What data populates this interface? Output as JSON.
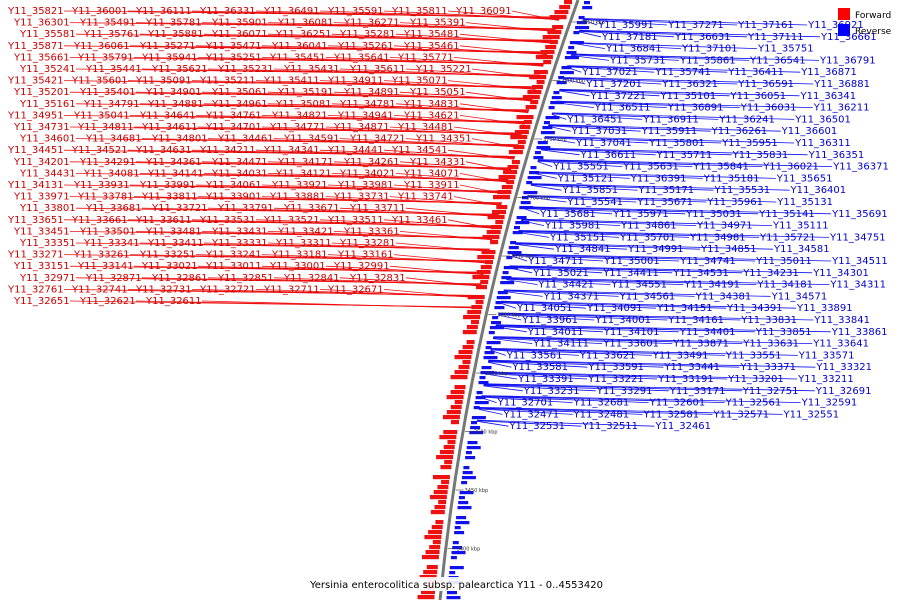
{
  "legend": {
    "forward_label": "Forward",
    "reverse_label": "Reverse",
    "forward_color": "#ff0000",
    "reverse_color": "#0000ff"
  },
  "caption": "Yersinia enterocolitica subsp. palearctica Y11 - 0..4553420",
  "position_labels": [
    "3850 kbp",
    "3800 kbp",
    "3750 kbp",
    "3700 kbp",
    "3650 kbp",
    "3600 kbp",
    "3550 kbp",
    "3500 kbp",
    "3450 kbp",
    "3400 kbp"
  ],
  "forward_genes": [
    "Y11_35821",
    "Y11_36001",
    "Y11_36111",
    "Y11_36331",
    "Y11_36491",
    "Y11_35591",
    "Y11_35811",
    "Y11_36091",
    "Y11_36301",
    "Y11_35491",
    "Y11_35781",
    "Y11_35901",
    "Y11_36081",
    "Y11_36271",
    "Y11_35391",
    "Y11_35581",
    "Y11_35761",
    "Y11_35881",
    "Y11_36071",
    "Y11_36251",
    "Y11_35281",
    "Y11_35481",
    "Y11_35871",
    "Y11_36061",
    "Y11_35271",
    "Y11_35471",
    "Y11_36041",
    "Y11_35261",
    "Y11_35461",
    "Y11_35661",
    "Y11_35791",
    "Y11_35941",
    "Y11_35251",
    "Y11_35451",
    "Y11_35641",
    "Y11_35771",
    "Y11_35241",
    "Y11_35441",
    "Y11_35621",
    "Y11_35231",
    "Y11_35431",
    "Y11_35611",
    "Y11_35221",
    "Y11_35421",
    "Y11_35601",
    "Y11_35091",
    "Y11_35211",
    "Y11_35411",
    "Y11_34911",
    "Y11_35071",
    "Y11_35201",
    "Y11_35401",
    "Y11_34901",
    "Y11_35061",
    "Y11_35191",
    "Y11_34891",
    "Y11_35051",
    "Y11_35161",
    "Y11_34791",
    "Y11_34881",
    "Y11_34961",
    "Y11_35081",
    "Y11_34781",
    "Y11_34831",
    "Y11_34951",
    "Y11_35041",
    "Y11_34641",
    "Y11_34761",
    "Y11_34821",
    "Y11_34941",
    "Y11_34621",
    "Y11_34731",
    "Y11_34811",
    "Y11_34611",
    "Y11_34701",
    "Y11_34771",
    "Y11_34871",
    "Y11_34481",
    "Y11_34601",
    "Y11_34681",
    "Y11_34801",
    "Y11_34461",
    "Y11_34591",
    "Y11_34721",
    "Y11_34351",
    "Y11_34451",
    "Y11_34521",
    "Y11_34631",
    "Y11_34211",
    "Y11_34341",
    "Y11_34441",
    "Y11_34541",
    "Y11_34201",
    "Y11_34291",
    "Y11_34361",
    "Y11_34471",
    "Y11_34171",
    "Y11_34261",
    "Y11_34331",
    "Y11_34431",
    "Y11_34081",
    "Y11_34141",
    "Y11_34031",
    "Y11_34121",
    "Y11_34021",
    "Y11_34071",
    "Y11_34131",
    "Y11_33931",
    "Y11_33991",
    "Y11_34061",
    "Y11_33921",
    "Y11_33981",
    "Y11_33911",
    "Y11_33971",
    "Y11_33781",
    "Y11_33811",
    "Y11_33901",
    "Y11_33881",
    "Y11_33731",
    "Y11_33741",
    "Y11_33801",
    "Y11_33681",
    "Y11_33721",
    "Y11_33791",
    "Y11_33671",
    "Y11_33711",
    "Y11_33651",
    "Y11_33661",
    "Y11_33611",
    "Y11_33531",
    "Y11_33521",
    "Y11_33511",
    "Y11_33461",
    "Y11_33451",
    "Y11_33501",
    "Y11_33481",
    "Y11_33431",
    "Y11_33421",
    "Y11_33361",
    "Y11_33351",
    "Y11_33341",
    "Y11_33411",
    "Y11_33331",
    "Y11_33311",
    "Y11_33281",
    "Y11_33271",
    "Y11_33261",
    "Y11_33251",
    "Y11_33241",
    "Y11_33181",
    "Y11_33161",
    "Y11_33151",
    "Y11_33141",
    "Y11_33021",
    "Y11_33011",
    "Y11_33001",
    "Y11_32991",
    "Y11_32971",
    "Y11_32871",
    "Y11_32861",
    "Y11_32851",
    "Y11_32841",
    "Y11_32831",
    "Y11_32761",
    "Y11_32741",
    "Y11_32731",
    "Y11_32721",
    "Y11_32711",
    "Y11_32671",
    "Y11_32651",
    "Y11_32621",
    "Y11_32611"
  ],
  "reverse_genes": [
    "Y11_35991",
    "Y11_37271",
    "Y11_37161",
    "Y11_36921",
    "Y11_37181",
    "Y11_36631",
    "Y11_37111",
    "Y11_36661",
    "Y11_36841",
    "Y11_37101",
    "Y11_35751",
    "Y11_35731",
    "Y11_35861",
    "Y11_36541",
    "Y11_36791",
    "Y11_37021",
    "Y11_35741",
    "Y11_36411",
    "Y11_36871",
    "Y11_37201",
    "Y11_36321",
    "Y11_36591",
    "Y11_36881",
    "Y11_37221",
    "Y11_35101",
    "Y11_36051",
    "Y11_36341",
    "Y11_36511",
    "Y11_36891",
    "Y11_36031",
    "Y11_36211",
    "Y11_36451",
    "Y11_36911",
    "Y11_36241",
    "Y11_36501",
    "Y11_37031",
    "Y11_35911",
    "Y11_36261",
    "Y11_36601",
    "Y11_37041",
    "Y11_35801",
    "Y11_35951",
    "Y11_36311",
    "Y11_36611",
    "Y11_35711",
    "Y11_35831",
    "Y11_36351",
    "Y11_35551",
    "Y11_35631",
    "Y11_35841",
    "Y11_36021",
    "Y11_36371",
    "Y11_35121",
    "Y11_36391",
    "Y11_35181",
    "Y11_35651",
    "Y11_35851",
    "Y11_35171",
    "Y11_35531",
    "Y11_36401",
    "Y11_35541",
    "Y11_35671",
    "Y11_35961",
    "Y11_35131",
    "Y11_35681",
    "Y11_35971",
    "Y11_35031",
    "Y11_35141",
    "Y11_35691",
    "Y11_35981",
    "Y11_34861",
    "Y11_34971",
    "Y11_35111",
    "Y11_35151",
    "Y11_35701",
    "Y11_34981",
    "Y11_35721",
    "Y11_34751",
    "Y11_34841",
    "Y11_34991",
    "Y11_34851",
    "Y11_34581",
    "Y11_34711",
    "Y11_35001",
    "Y11_34741",
    "Y11_35011",
    "Y11_34511",
    "Y11_35021",
    "Y11_34411",
    "Y11_34531",
    "Y11_34231",
    "Y11_34301",
    "Y11_34421",
    "Y11_34551",
    "Y11_34191",
    "Y11_34181",
    "Y11_34311",
    "Y11_34371",
    "Y11_34561",
    "Y11_34381",
    "Y11_34571",
    "Y11_34051",
    "Y11_34091",
    "Y11_34151",
    "Y11_34391",
    "Y11_33891",
    "Y11_33961",
    "Y11_34001",
    "Y11_34161",
    "Y11_33831",
    "Y11_33841",
    "Y11_34011",
    "Y11_34101",
    "Y11_34401",
    "Y11_33851",
    "Y11_33861",
    "Y11_34111",
    "Y11_33601",
    "Y11_33871",
    "Y11_33631",
    "Y11_33641",
    "Y11_33561",
    "Y11_33621",
    "Y11_33491",
    "Y11_33551",
    "Y11_33571",
    "Y11_33581",
    "Y11_33591",
    "Y11_33441",
    "Y11_33371",
    "Y11_33321",
    "Y11_33391",
    "Y11_33221",
    "Y11_33191",
    "Y11_33201",
    "Y11_33211",
    "Y11_33231",
    "Y11_33291",
    "Y11_33171",
    "Y11_32751",
    "Y11_32691",
    "Y11_32701",
    "Y11_32681",
    "Y11_32601",
    "Y11_32561",
    "Y11_32591",
    "Y11_32471",
    "Y11_32481",
    "Y11_32581",
    "Y11_32571",
    "Y11_32551",
    "Y11_32531",
    "Y11_32511",
    "Y11_32461"
  ]
}
